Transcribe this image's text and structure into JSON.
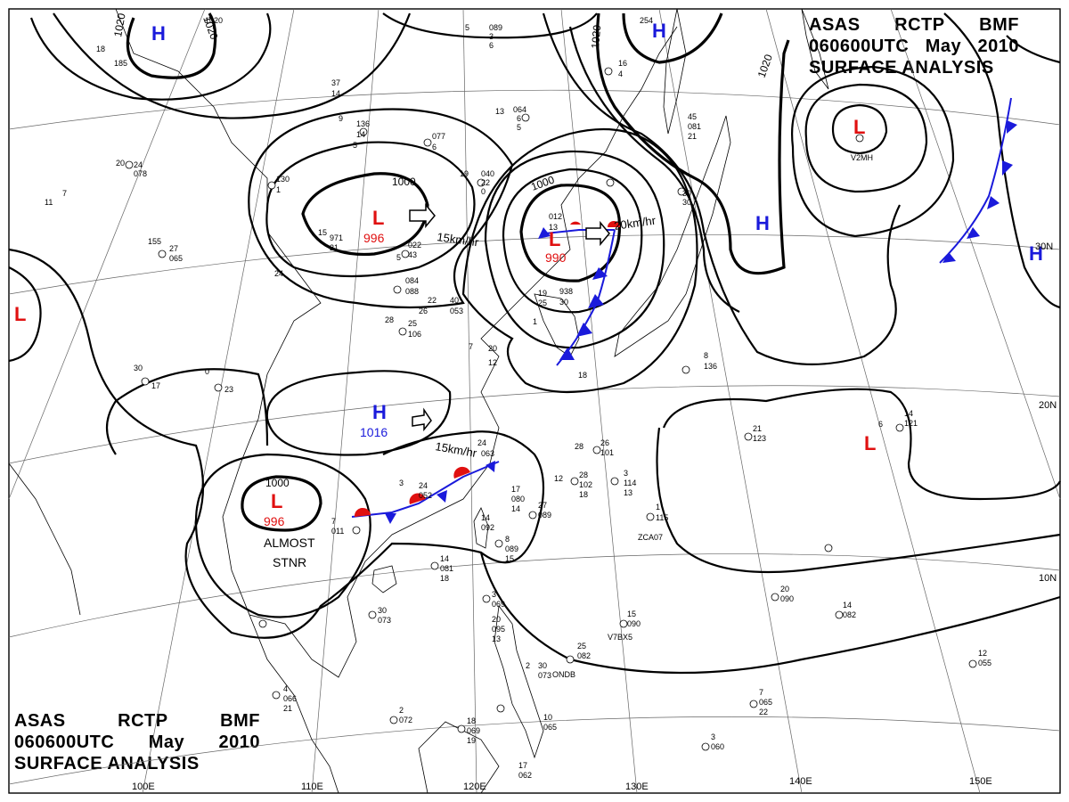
{
  "header": {
    "agency": "ASAS",
    "station": "RCTP",
    "code": "BMF",
    "time": "060600UTC",
    "month": "May",
    "year": "2010",
    "product": "SURFACE ANALYSIS"
  },
  "longitude_labels": [
    "100E",
    "110E",
    "120E",
    "130E",
    "140E",
    "150E"
  ],
  "latitude_labels": [
    "30N",
    "20N",
    "10N"
  ],
  "systems": [
    {
      "type": "H",
      "color": "#1a1adb"
    },
    {
      "type": "H",
      "color": "#1a1adb"
    },
    {
      "type": "H",
      "color": "#1a1adb"
    },
    {
      "type": "H",
      "color": "#1a1adb"
    },
    {
      "type": "H",
      "color": "#1a1adb",
      "pressure": "1016"
    },
    {
      "type": "L",
      "color": "#e01010",
      "pressure": "996"
    },
    {
      "type": "L",
      "color": "#e01010",
      "pressure": "990"
    },
    {
      "type": "L",
      "color": "#e01010",
      "pressure": "996"
    },
    {
      "type": "L",
      "color": "#e01010"
    },
    {
      "type": "L",
      "color": "#e01010"
    },
    {
      "type": "L",
      "color": "#e01010"
    }
  ],
  "isobar_labels": [
    "1020",
    "1020",
    "1020",
    "1020",
    "1000",
    "1000",
    "1000"
  ],
  "motions": [
    "15km/hr",
    "20km/hr",
    "15km/hr"
  ],
  "annotations": [
    "ALMOST",
    "STNR"
  ],
  "colors": {
    "high": "#1a1adb",
    "low": "#e01010",
    "cold_front": "#1a1adb",
    "warm_front": "#e01010"
  },
  "station_numbers": [
    "1020",
    "18",
    "185",
    "37",
    "14",
    "9",
    "136",
    "14",
    "5",
    "13",
    "064",
    "6",
    "5",
    "089",
    "3",
    "6",
    "5",
    "254",
    "16",
    "4",
    "19",
    "040",
    "22",
    "0",
    "077",
    "6",
    "130",
    "1",
    "971",
    "21",
    "15",
    "022",
    "43",
    "5",
    "012",
    "13",
    "938",
    "30",
    "19",
    "25",
    "1",
    "45",
    "081",
    "21",
    "30",
    "30",
    "20",
    "24",
    "078",
    "11",
    "7",
    "155",
    "27",
    "065",
    "24",
    "084",
    "088",
    "40",
    "053",
    "25",
    "106",
    "28",
    "22",
    "26",
    "7",
    "20",
    "12",
    "0",
    "23",
    "30",
    "17",
    "18",
    "24",
    "063",
    "8",
    "136",
    "21",
    "123",
    "14",
    "121",
    "6",
    "28",
    "26",
    "101",
    "12",
    "28",
    "102",
    "18",
    "3",
    "114",
    "13",
    "1",
    "115",
    "3",
    "24",
    "052",
    "17",
    "080",
    "14",
    "27",
    "089",
    "14",
    "092",
    "8",
    "089",
    "15",
    "7",
    "011",
    "30",
    "073",
    "14",
    "081",
    "18",
    "3",
    "069",
    "20",
    "095",
    "13",
    "4",
    "066",
    "21",
    "2",
    "072",
    "18",
    "069",
    "19",
    "2",
    "30",
    "073",
    "25",
    "082",
    "15",
    "090",
    "10",
    "065",
    "20",
    "090",
    "14",
    "082",
    "12",
    "055",
    "7",
    "065",
    "22",
    "3",
    "060",
    "17",
    "062",
    "27"
  ],
  "station_ids": [
    "ZCA07",
    "V7BX5",
    "ONDB",
    "V2MH"
  ]
}
